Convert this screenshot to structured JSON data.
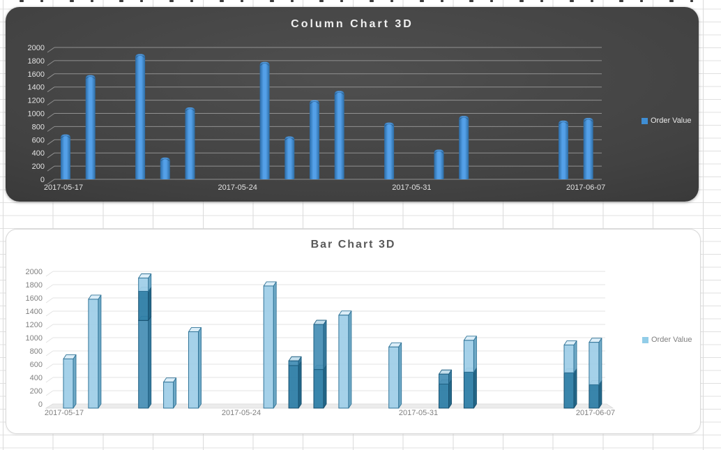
{
  "sheet": {
    "grid_color": "#dadada"
  },
  "chart_data": [
    {
      "type": "bar",
      "variant": "3d-rounded-column",
      "title": "Column Chart 3D",
      "theme": "dark",
      "background": [
        "#4f4f4f",
        "#282828"
      ],
      "axis_text_color": "#e3e3e3",
      "gridline_color": "#919191",
      "ylim": [
        0,
        2000
      ],
      "ytick_step": 200,
      "x_tick_labels": [
        "2017-05-17",
        "2017-05-24",
        "2017-05-31",
        "2017-06-07"
      ],
      "legend": {
        "label": "Order Value",
        "swatch_color": "#3f8ed4",
        "position": "right"
      },
      "bar_gradient": [
        "#2b6ba6",
        "#54a0e8",
        "#2d6ca4"
      ],
      "series": [
        {
          "name": "Order Value",
          "points": [
            {
              "date": "2017-05-17",
              "day": 0,
              "value": 680
            },
            {
              "date": "2017-05-18",
              "day": 1,
              "value": 1580
            },
            {
              "date": "2017-05-20",
              "day": 3,
              "value": 1900
            },
            {
              "date": "2017-05-21",
              "day": 4,
              "value": 330
            },
            {
              "date": "2017-05-22",
              "day": 5,
              "value": 1090
            },
            {
              "date": "2017-05-25",
              "day": 8,
              "value": 1780
            },
            {
              "date": "2017-05-26",
              "day": 9,
              "value": 650
            },
            {
              "date": "2017-05-27",
              "day": 10,
              "value": 1200
            },
            {
              "date": "2017-05-28",
              "day": 11,
              "value": 1340
            },
            {
              "date": "2017-05-30",
              "day": 13,
              "value": 860
            },
            {
              "date": "2017-06-01",
              "day": 15,
              "value": 450
            },
            {
              "date": "2017-06-02",
              "day": 16,
              "value": 960
            },
            {
              "date": "2017-06-06",
              "day": 20,
              "value": 890
            },
            {
              "date": "2017-06-07",
              "day": 21,
              "value": 930
            }
          ]
        }
      ]
    },
    {
      "type": "bar",
      "variant": "3d-glass-box",
      "title": "Bar Chart 3D",
      "theme": "light",
      "title_color": "#595959",
      "axis_text_color": "#7f7f7f",
      "gridline_color": "#e3e3e3",
      "floor_color": "#ececec",
      "ylim": [
        0,
        2000
      ],
      "ytick_step": 200,
      "x_tick_labels": [
        "2017-05-17",
        "2017-05-24",
        "2017-05-31",
        "2017-06-07"
      ],
      "legend": {
        "label": "Order Value",
        "swatch_color": "#92cde8",
        "position": "right"
      },
      "tones": {
        "pale": {
          "front": "#a0cfe8",
          "side": "#6fa9c6",
          "top": "#dceef8",
          "line": "#2f7397"
        },
        "mid": {
          "front": "#4a90b6",
          "side": "#37799c",
          "top": "#c3deec",
          "line": "#1e5f81"
        },
        "dark": {
          "front": "#2e7ea7",
          "side": "#236788",
          "top": "#a3cbde",
          "line": "#174f6e"
        }
      },
      "series": [
        {
          "name": "Order Value",
          "points": [
            {
              "date": "2017-05-17",
              "day": 0,
              "value": 680,
              "segments": [
                {
                  "to": 680,
                  "tone": "pale"
                }
              ]
            },
            {
              "date": "2017-05-18",
              "day": 1,
              "value": 1580,
              "segments": [
                {
                  "to": 1580,
                  "tone": "pale"
                }
              ]
            },
            {
              "date": "2017-05-20",
              "day": 3,
              "value": 1900,
              "segments": [
                {
                  "to": 1260,
                  "tone": "mid"
                },
                {
                  "to": 1700,
                  "tone": "dark"
                },
                {
                  "to": 1900,
                  "tone": "pale"
                }
              ]
            },
            {
              "date": "2017-05-21",
              "day": 4,
              "value": 330,
              "segments": [
                {
                  "to": 330,
                  "tone": "pale"
                }
              ]
            },
            {
              "date": "2017-05-22",
              "day": 5,
              "value": 1090,
              "segments": [
                {
                  "to": 1090,
                  "tone": "pale"
                }
              ]
            },
            {
              "date": "2017-05-25",
              "day": 8,
              "value": 1780,
              "segments": [
                {
                  "to": 1780,
                  "tone": "pale"
                }
              ]
            },
            {
              "date": "2017-05-26",
              "day": 9,
              "value": 650,
              "segments": [
                {
                  "to": 580,
                  "tone": "dark"
                },
                {
                  "to": 650,
                  "tone": "mid"
                }
              ]
            },
            {
              "date": "2017-05-27",
              "day": 10,
              "value": 1200,
              "segments": [
                {
                  "to": 520,
                  "tone": "dark"
                },
                {
                  "to": 1200,
                  "tone": "mid"
                }
              ]
            },
            {
              "date": "2017-05-28",
              "day": 11,
              "value": 1340,
              "segments": [
                {
                  "to": 1340,
                  "tone": "pale"
                }
              ]
            },
            {
              "date": "2017-05-30",
              "day": 13,
              "value": 860,
              "segments": [
                {
                  "to": 860,
                  "tone": "pale"
                }
              ]
            },
            {
              "date": "2017-06-01",
              "day": 15,
              "value": 450,
              "segments": [
                {
                  "to": 300,
                  "tone": "dark"
                },
                {
                  "to": 450,
                  "tone": "mid"
                }
              ]
            },
            {
              "date": "2017-06-02",
              "day": 16,
              "value": 960,
              "segments": [
                {
                  "to": 480,
                  "tone": "dark"
                },
                {
                  "to": 960,
                  "tone": "pale"
                }
              ]
            },
            {
              "date": "2017-06-06",
              "day": 20,
              "value": 890,
              "segments": [
                {
                  "to": 470,
                  "tone": "dark"
                },
                {
                  "to": 890,
                  "tone": "pale"
                }
              ]
            },
            {
              "date": "2017-06-07",
              "day": 21,
              "value": 930,
              "segments": [
                {
                  "to": 290,
                  "tone": "dark"
                },
                {
                  "to": 930,
                  "tone": "pale"
                }
              ]
            }
          ]
        }
      ]
    }
  ]
}
